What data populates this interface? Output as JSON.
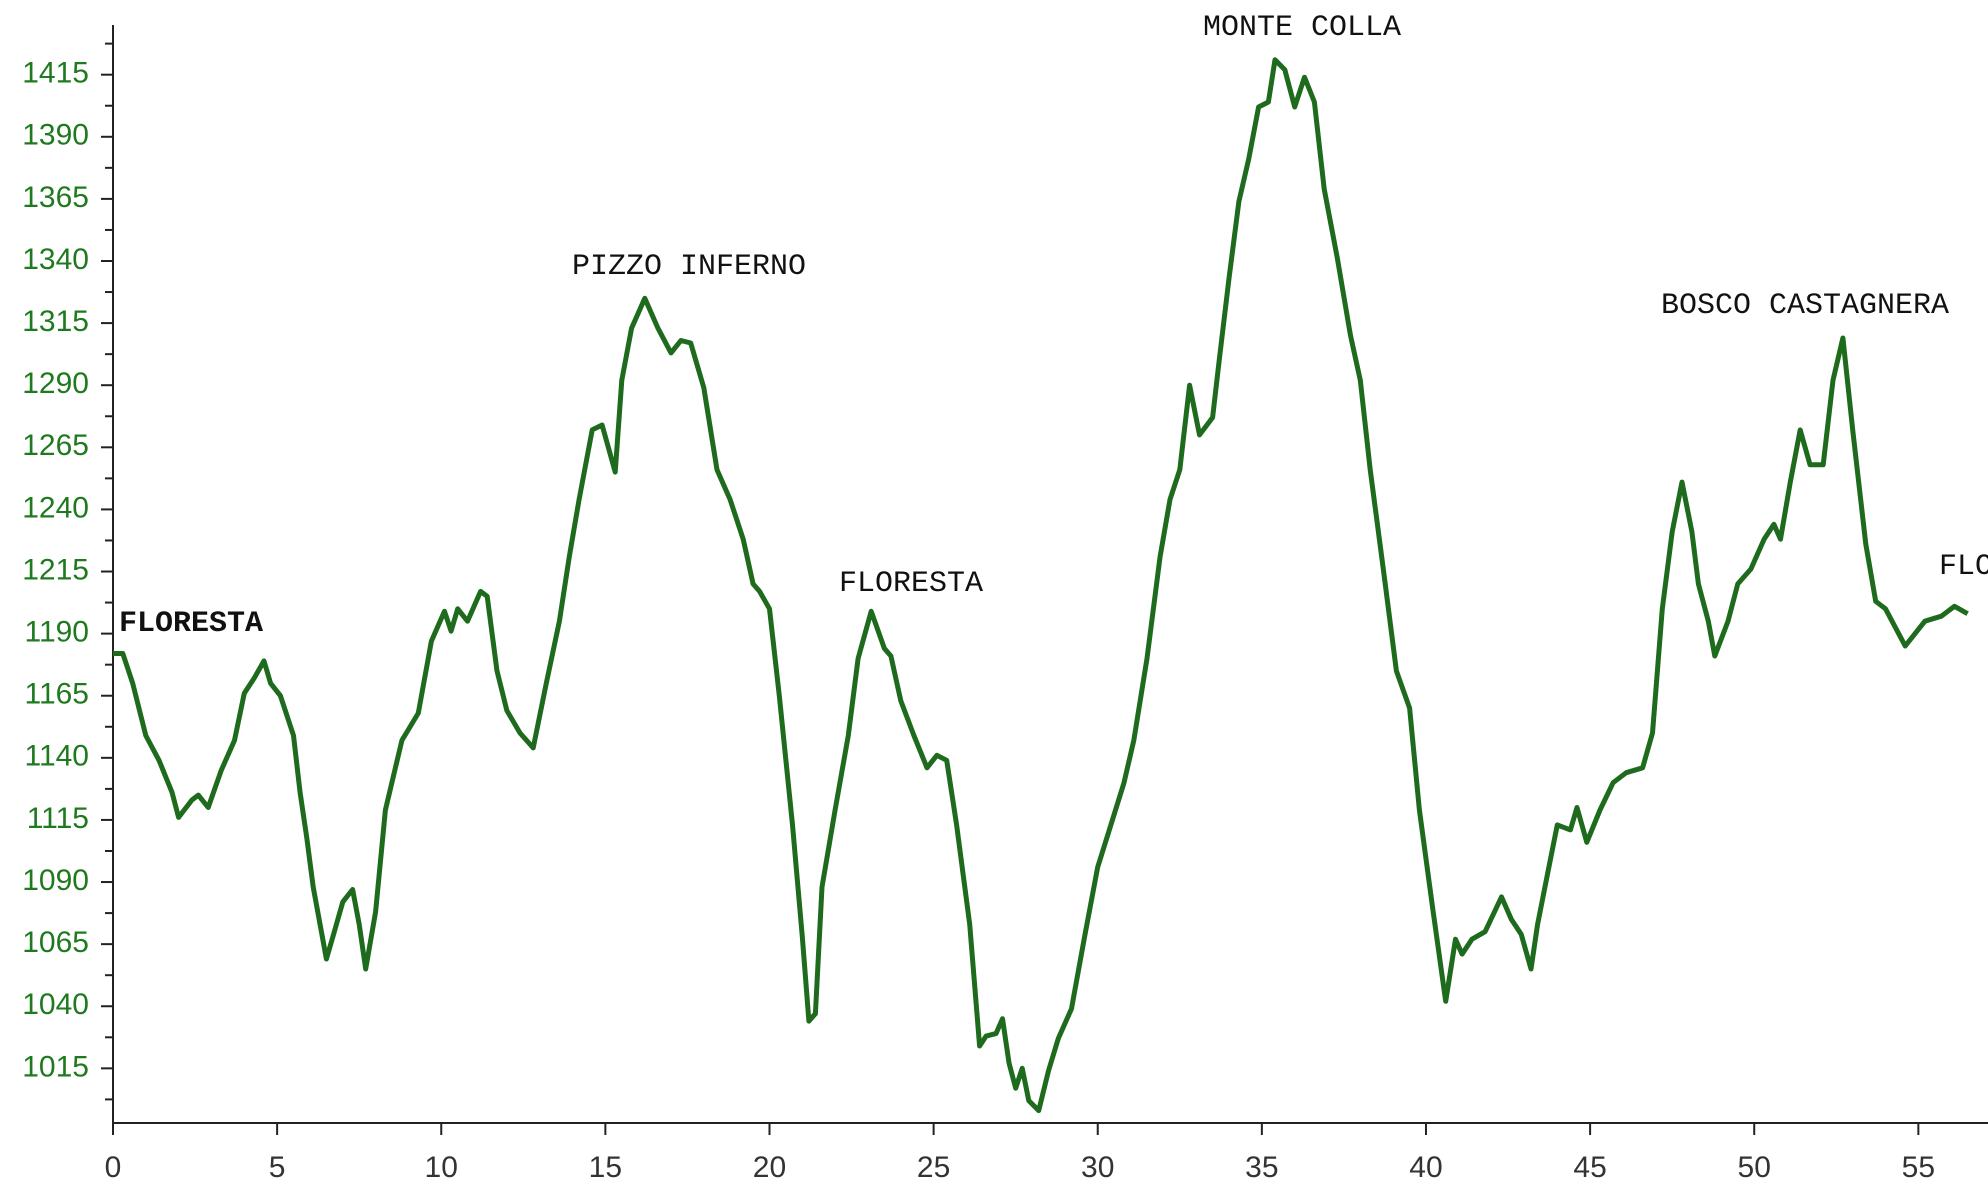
{
  "chart_data": {
    "type": "line",
    "x": [
      0,
      0.3,
      0.6,
      1.0,
      1.4,
      1.8,
      2.0,
      2.4,
      2.6,
      2.9,
      3.3,
      3.7,
      4.0,
      4.3,
      4.6,
      4.8,
      5.1,
      5.5,
      5.7,
      5.9,
      6.1,
      6.5,
      6.7,
      7.0,
      7.3,
      7.5,
      7.7,
      8.0,
      8.3,
      8.8,
      9.3,
      9.7,
      10.1,
      10.3,
      10.5,
      10.8,
      11.2,
      11.4,
      11.7,
      12.0,
      12.4,
      12.8,
      13.2,
      13.6,
      13.9,
      14.2,
      14.6,
      14.9,
      15.3,
      15.5,
      15.8,
      16.2,
      16.6,
      17.0,
      17.3,
      17.6,
      18.0,
      18.4,
      18.8,
      19.2,
      19.5,
      19.7,
      20.0,
      20.3,
      20.7,
      21.0,
      21.2,
      21.4,
      21.6,
      22.0,
      22.4,
      22.7,
      23.1,
      23.5,
      23.7,
      24.0,
      24.4,
      24.8,
      25.1,
      25.4,
      25.7,
      26.1,
      26.4,
      26.6,
      26.9,
      27.1,
      27.3,
      27.5,
      27.7,
      27.9,
      28.2,
      28.5,
      28.8,
      29.2,
      29.6,
      30.0,
      30.4,
      30.8,
      31.1,
      31.5,
      31.9,
      32.2,
      32.5,
      32.8,
      33.1,
      33.5,
      33.7,
      34.0,
      34.3,
      34.6,
      34.9,
      35.2,
      35.4,
      35.7,
      36.0,
      36.3,
      36.6,
      36.9,
      37.3,
      37.7,
      38.0,
      38.3,
      38.7,
      39.1,
      39.5,
      39.8,
      40.2,
      40.6,
      40.9,
      41.1,
      41.4,
      41.8,
      42.3,
      42.6,
      42.9,
      43.2,
      43.4,
      43.7,
      44.0,
      44.4,
      44.6,
      44.9,
      45.3,
      45.7,
      46.1,
      46.6,
      46.9,
      47.2,
      47.5,
      47.8,
      48.1,
      48.3,
      48.6,
      48.8,
      49.2,
      49.5,
      49.9,
      50.3,
      50.6,
      50.8,
      51.1,
      51.4,
      51.7,
      52.1,
      52.4,
      52.7,
      53.0,
      53.4,
      53.7,
      54.0,
      54.6,
      55.2,
      55.7,
      56.1,
      56.5
    ],
    "series": [
      {
        "color": "#1e6b1e",
        "values": [
          1182,
          1182,
          1170,
          1149,
          1139,
          1126,
          1116,
          1123,
          1125,
          1120,
          1135,
          1147,
          1166,
          1172,
          1179,
          1170,
          1165,
          1149,
          1126,
          1108,
          1088,
          1059,
          1068,
          1082,
          1087,
          1073,
          1055,
          1078,
          1119,
          1147,
          1158,
          1187,
          1199,
          1191,
          1200,
          1195,
          1207,
          1205,
          1175,
          1159,
          1150,
          1144,
          1170,
          1195,
          1221,
          1244,
          1272,
          1274,
          1255,
          1292,
          1313,
          1325,
          1313,
          1303,
          1308,
          1307,
          1289,
          1256,
          1244,
          1228,
          1210,
          1207,
          1200,
          1165,
          1113,
          1068,
          1034,
          1037,
          1088,
          1119,
          1149,
          1180,
          1199,
          1184,
          1181,
          1163,
          1149,
          1136,
          1141,
          1139,
          1113,
          1073,
          1024,
          1028,
          1029,
          1035,
          1017,
          1007,
          1015,
          1002,
          998,
          1014,
          1027,
          1039,
          1068,
          1096,
          1113,
          1130,
          1147,
          1180,
          1221,
          1244,
          1256,
          1290,
          1270,
          1277,
          1300,
          1333,
          1364,
          1381,
          1402,
          1404,
          1421,
          1417,
          1402,
          1414,
          1404,
          1369,
          1341,
          1310,
          1292,
          1256,
          1216,
          1175,
          1160,
          1119,
          1080,
          1042,
          1067,
          1061,
          1067,
          1070,
          1084,
          1075,
          1069,
          1055,
          1073,
          1093,
          1113,
          1111,
          1120,
          1106,
          1119,
          1130,
          1134,
          1136,
          1150,
          1200,
          1231,
          1251,
          1231,
          1210,
          1195,
          1181,
          1195,
          1210,
          1216,
          1228,
          1234,
          1228,
          1251,
          1272,
          1258,
          1258,
          1292,
          1309,
          1272,
          1226,
          1203,
          1200,
          1185,
          1195,
          1197,
          1201,
          1198
        ]
      }
    ],
    "annotations": [
      "FLORESTA",
      "PIZZO INFERNO",
      "FLORESTA",
      "MONTE COLLA",
      "BOSCO CASTAGNERA",
      "FLORESTA"
    ],
    "xlim": [
      0,
      57
    ],
    "xticks": [
      0,
      5,
      10,
      15,
      20,
      25,
      30,
      35,
      40,
      45,
      50,
      55
    ],
    "ylim": [
      993,
      1435
    ],
    "yticks": [
      1015,
      1040,
      1065,
      1090,
      1115,
      1140,
      1165,
      1190,
      1215,
      1240,
      1265,
      1290,
      1315,
      1340,
      1365,
      1390,
      1415
    ],
    "yticks_minor": [
      1002.5,
      1027.5,
      1052.5,
      1077.5,
      1102.5,
      1127.5,
      1152.5,
      1177.5,
      1202.5,
      1227.5,
      1252.5,
      1277.5,
      1302.5,
      1327.5,
      1352.5,
      1377.5,
      1402.5,
      1427.5
    ]
  }
}
